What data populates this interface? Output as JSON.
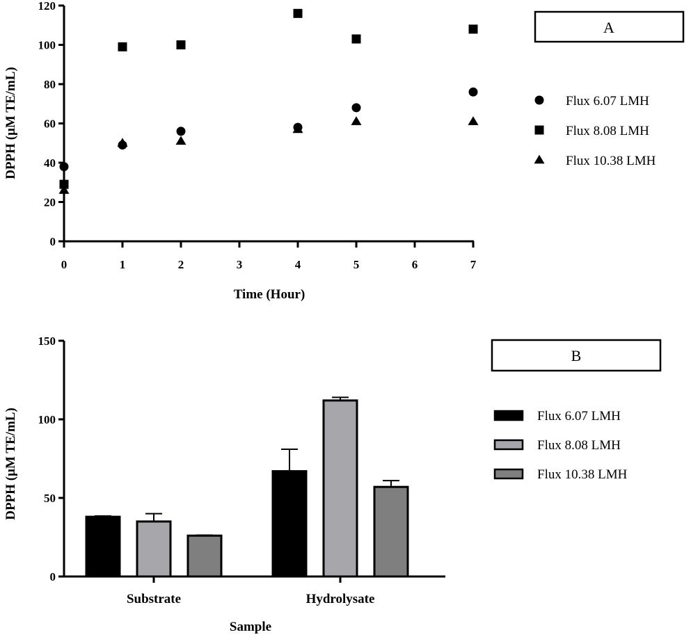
{
  "chart_data": [
    {
      "type": "scatter",
      "panel_label": "A",
      "title": "",
      "xlabel": "Time (Hour)",
      "ylabel": "DPPH (µM TE/mL)",
      "xlim": [
        0,
        7
      ],
      "ylim": [
        0,
        120
      ],
      "xticks": [
        0,
        1,
        2,
        3,
        4,
        5,
        6,
        7
      ],
      "yticks": [
        0,
        20,
        40,
        60,
        80,
        100,
        120
      ],
      "grid": false,
      "legend_position": "right",
      "series": [
        {
          "name": "Flux 6.07 LMH",
          "marker": "circle",
          "x": [
            0,
            1,
            2,
            4,
            5,
            7
          ],
          "y": [
            38,
            49,
            56,
            58,
            68,
            76
          ]
        },
        {
          "name": "Flux 8.08 LMH",
          "marker": "square",
          "x": [
            0,
            1,
            2,
            4,
            5,
            7
          ],
          "y": [
            29,
            99,
            100,
            116,
            103,
            108
          ]
        },
        {
          "name": "Flux 10.38 LMH",
          "marker": "triangle",
          "x": [
            0,
            1,
            2,
            4,
            5,
            7
          ],
          "y": [
            26,
            50,
            51,
            57,
            61,
            61
          ]
        }
      ]
    },
    {
      "type": "bar",
      "panel_label": "B",
      "title": "",
      "xlabel": "Sample",
      "ylabel": "DPPH (µM TE/mL)",
      "categories": [
        "Substrate",
        "Hydrolysate"
      ],
      "ylim": [
        0,
        150
      ],
      "yticks": [
        0,
        50,
        100,
        150
      ],
      "grid": false,
      "legend_position": "right",
      "series": [
        {
          "name": "Flux 6.07 LMH",
          "color": "#000000",
          "values": [
            38,
            67
          ],
          "errors": [
            0.5,
            14
          ]
        },
        {
          "name": "Flux 8.08 LMH",
          "color": "#a6a6ab",
          "values": [
            35,
            112
          ],
          "errors": [
            5,
            2
          ]
        },
        {
          "name": "Flux 10.38 LMH",
          "color": "#7f7f7f",
          "values": [
            26,
            57
          ],
          "errors": [
            0.3,
            4
          ]
        }
      ]
    }
  ]
}
